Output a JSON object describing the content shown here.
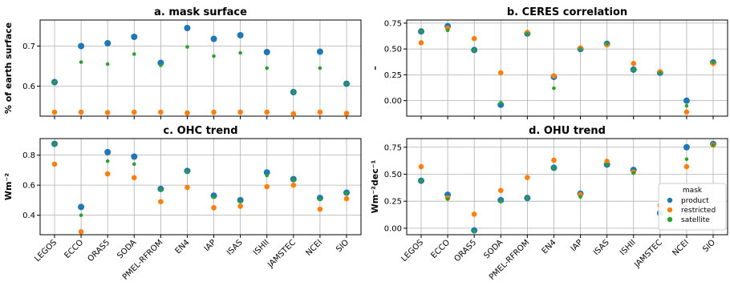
{
  "chart_data": [
    {
      "type": "scatter",
      "title": "a. mask surface",
      "ylabel": "% of earth surface",
      "xlabel": "",
      "categories": [
        "LEGOS",
        "ECCO",
        "ORAS5",
        "SODA",
        "PMEL-RFROM",
        "EN4",
        "IAP",
        "ISAS",
        "ISHII",
        "JAMSTEC",
        "NCEI",
        "SIO"
      ],
      "show_xticklabels": false,
      "ylim": [
        0.525,
        0.765
      ],
      "yticks": [
        "0.6",
        "0.7"
      ],
      "ytick_values": [
        0.6,
        0.7
      ],
      "grid": true,
      "series": [
        {
          "name": "product",
          "color": "#1f77b4",
          "size": 4,
          "values": [
            0.61,
            0.7,
            0.707,
            0.723,
            0.658,
            0.745,
            0.718,
            0.727,
            0.685,
            0.585,
            0.686,
            0.606
          ]
        },
        {
          "name": "restricted",
          "color": "#ff7f0e",
          "size": 3.3,
          "values": [
            0.535,
            0.535,
            0.534,
            0.535,
            0.535,
            0.533,
            0.535,
            0.535,
            0.535,
            0.531,
            0.535,
            0.532
          ]
        },
        {
          "name": "satellite",
          "color": "#2ca02c",
          "size": 2.3,
          "values": [
            0.61,
            0.66,
            0.655,
            0.68,
            0.652,
            0.698,
            0.675,
            0.683,
            0.645,
            0.585,
            0.645,
            0.606
          ]
        }
      ]
    },
    {
      "type": "scatter",
      "title": "b. CERES correlation",
      "ylabel": "–",
      "xlabel": "",
      "categories": [
        "LEGOS",
        "ECCO",
        "ORAS5",
        "SODA",
        "PMEL-RFROM",
        "EN4",
        "IAP",
        "ISAS",
        "ISHII",
        "JAMSTEC",
        "NCEI",
        "SIO"
      ],
      "show_xticklabels": false,
      "ylim": [
        -0.15,
        0.78
      ],
      "yticks": [
        "0.00",
        "0.25",
        "0.50",
        "0.75"
      ],
      "ytick_values": [
        0,
        0.25,
        0.5,
        0.75
      ],
      "grid": true,
      "series": [
        {
          "name": "product",
          "color": "#1f77b4",
          "size": 4,
          "values": [
            0.67,
            0.72,
            0.49,
            -0.04,
            0.65,
            0.23,
            0.5,
            0.55,
            0.3,
            0.27,
            0.0,
            0.37
          ]
        },
        {
          "name": "restricted",
          "color": "#ff7f0e",
          "size": 3.3,
          "values": [
            0.56,
            0.7,
            0.6,
            0.27,
            0.66,
            0.24,
            0.51,
            0.54,
            0.36,
            0.28,
            -0.11,
            0.36
          ]
        },
        {
          "name": "satellite",
          "color": "#2ca02c",
          "size": 2.3,
          "values": [
            0.67,
            0.68,
            0.49,
            -0.02,
            0.65,
            0.12,
            0.5,
            0.55,
            0.3,
            0.27,
            -0.05,
            0.37
          ]
        }
      ]
    },
    {
      "type": "scatter",
      "title": "c. OHC trend",
      "ylabel": "Wm⁻²",
      "xlabel": "",
      "categories": [
        "LEGOS",
        "ECCO",
        "ORAS5",
        "SODA",
        "PMEL-RFROM",
        "EN4",
        "IAP",
        "ISAS",
        "ISHII",
        "JAMSTEC",
        "NCEI",
        "SIO"
      ],
      "show_xticklabels": true,
      "ylim": [
        0.27,
        0.91
      ],
      "yticks": [
        "0.4",
        "0.6",
        "0.8"
      ],
      "ytick_values": [
        0.4,
        0.6,
        0.8
      ],
      "grid": true,
      "series": [
        {
          "name": "product",
          "color": "#1f77b4",
          "size": 4,
          "values": [
            0.875,
            0.455,
            0.82,
            0.79,
            0.575,
            0.695,
            0.53,
            0.5,
            0.685,
            0.64,
            0.515,
            0.55
          ]
        },
        {
          "name": "restricted",
          "color": "#ff7f0e",
          "size": 3.3,
          "values": [
            0.74,
            0.29,
            0.675,
            0.65,
            0.49,
            0.585,
            0.45,
            0.46,
            0.59,
            0.6,
            0.44,
            0.51
          ]
        },
        {
          "name": "satellite",
          "color": "#2ca02c",
          "size": 2.3,
          "values": [
            0.875,
            0.4,
            0.76,
            0.74,
            0.57,
            0.69,
            0.52,
            0.49,
            0.665,
            0.635,
            0.505,
            0.545
          ]
        }
      ]
    },
    {
      "type": "scatter",
      "title": "d. OHU trend",
      "ylabel": "Wm⁻²dec⁻¹",
      "xlabel": "",
      "categories": [
        "LEGOS",
        "ECCO",
        "ORAS5",
        "SODA",
        "PMEL-RFROM",
        "EN4",
        "IAP",
        "ISAS",
        "ISHII",
        "JAMSTEC",
        "NCEI",
        "SIO"
      ],
      "show_xticklabels": true,
      "ylim": [
        -0.06,
        0.83
      ],
      "yticks": [
        "0.00",
        "0.25",
        "0.50",
        "0.75"
      ],
      "ytick_values": [
        0,
        0.25,
        0.5,
        0.75
      ],
      "grid": true,
      "legend": {
        "title": "mask",
        "placement": "lower-right"
      },
      "series": [
        {
          "name": "product",
          "color": "#1f77b4",
          "size": 4,
          "values": [
            0.44,
            0.31,
            -0.02,
            0.26,
            0.28,
            0.56,
            0.32,
            0.59,
            0.54,
            0.14,
            0.75,
            0.78
          ]
        },
        {
          "name": "restricted",
          "color": "#ff7f0e",
          "size": 3.3,
          "values": [
            0.57,
            0.28,
            0.13,
            0.35,
            0.47,
            0.63,
            0.31,
            0.62,
            0.52,
            0.21,
            0.57,
            0.77
          ]
        },
        {
          "name": "satellite",
          "color": "#2ca02c",
          "size": 2.3,
          "values": [
            0.44,
            0.27,
            -0.03,
            0.25,
            0.28,
            0.56,
            0.29,
            0.59,
            0.51,
            0.15,
            0.64,
            0.77
          ]
        }
      ]
    }
  ]
}
